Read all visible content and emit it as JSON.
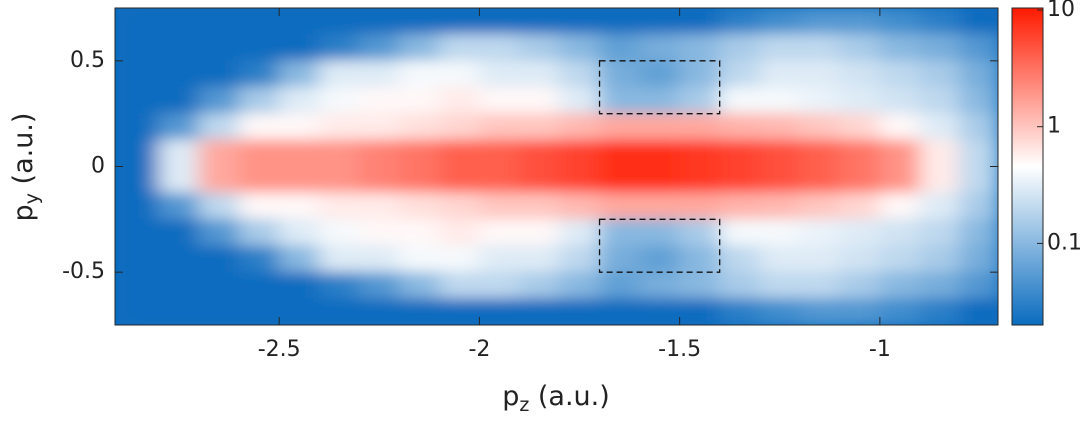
{
  "chart_data": {
    "type": "heatmap",
    "xlabel": [
      "p",
      "z",
      " (a.u.)"
    ],
    "ylabel": [
      "p",
      "y",
      " (a.u.)"
    ],
    "xlim": [
      -2.91,
      -0.705
    ],
    "ylim": [
      -0.75,
      0.75
    ],
    "xticks": [
      -2.5,
      -2,
      -1.5,
      -1
    ],
    "yticks": [
      -0.5,
      0,
      0.5
    ],
    "clim": [
      0.02,
      10.4
    ],
    "cticks": [
      0.1,
      1,
      10
    ],
    "log_color_scale": true,
    "colormap": [
      "#0a6cbf",
      "#ffffff",
      "#ff1a00"
    ],
    "x": [
      -2.85,
      -2.75,
      -2.65,
      -2.55,
      -2.45,
      -2.35,
      -2.25,
      -2.15,
      -2.05,
      -1.95,
      -1.85,
      -1.75,
      -1.65,
      -1.55,
      -1.45,
      -1.35,
      -1.25,
      -1.15,
      -1.05,
      -0.95,
      -0.85,
      -0.75
    ],
    "y": [
      0.6875,
      0.5625,
      0.4375,
      0.3125,
      0.1875,
      0.0625,
      -0.0625,
      -0.1875,
      -0.3125,
      -0.4375,
      -0.5625,
      -0.6875
    ],
    "z": [
      [
        0.02,
        0.02,
        0.02,
        0.02,
        0.02,
        0.02,
        0.02,
        0.02,
        0.02,
        0.02,
        0.02,
        0.02,
        0.02,
        0.02,
        0.02,
        0.03,
        0.04,
        0.05,
        0.05,
        0.04,
        0.03,
        0.02
      ],
      [
        0.02,
        0.02,
        0.02,
        0.02,
        0.02,
        0.03,
        0.05,
        0.1,
        0.2,
        0.2,
        0.15,
        0.1,
        0.06,
        0.08,
        0.1,
        0.15,
        0.2,
        0.2,
        0.15,
        0.1,
        0.08,
        0.05
      ],
      [
        0.02,
        0.02,
        0.02,
        0.03,
        0.1,
        0.3,
        0.3,
        0.4,
        0.4,
        0.3,
        0.3,
        0.2,
        0.08,
        0.06,
        0.1,
        0.2,
        0.3,
        0.3,
        0.25,
        0.2,
        0.15,
        0.08
      ],
      [
        0.02,
        0.02,
        0.05,
        0.15,
        0.3,
        0.4,
        0.5,
        0.5,
        0.6,
        0.5,
        0.5,
        0.3,
        0.1,
        0.1,
        0.15,
        0.4,
        0.4,
        0.35,
        0.3,
        0.25,
        0.2,
        0.1
      ],
      [
        0.02,
        0.05,
        0.2,
        0.5,
        0.5,
        0.6,
        0.6,
        0.7,
        0.8,
        1,
        1,
        1.2,
        1.5,
        1.5,
        1.5,
        1.3,
        1.2,
        1,
        0.8,
        0.5,
        0.3,
        0.15
      ],
      [
        0.02,
        0.3,
        1.5,
        2,
        2,
        2,
        2.5,
        3,
        4,
        4,
        5,
        6,
        8,
        8,
        7,
        6,
        5,
        4,
        3,
        2,
        0.6,
        0.2
      ],
      [
        0.02,
        0.3,
        1.5,
        2,
        2,
        2,
        2.5,
        3,
        4,
        4,
        5,
        6,
        8,
        8,
        7,
        6,
        5,
        4,
        3,
        2,
        0.6,
        0.2
      ],
      [
        0.02,
        0.05,
        0.2,
        0.5,
        0.5,
        0.6,
        0.6,
        0.7,
        0.8,
        1,
        1,
        1.2,
        1.5,
        1.5,
        1.5,
        1.3,
        1.2,
        1,
        0.8,
        0.5,
        0.3,
        0.15
      ],
      [
        0.02,
        0.02,
        0.05,
        0.15,
        0.3,
        0.4,
        0.5,
        0.5,
        0.6,
        0.5,
        0.5,
        0.3,
        0.1,
        0.1,
        0.15,
        0.4,
        0.4,
        0.35,
        0.3,
        0.25,
        0.2,
        0.1
      ],
      [
        0.02,
        0.02,
        0.02,
        0.03,
        0.1,
        0.3,
        0.3,
        0.4,
        0.4,
        0.3,
        0.3,
        0.2,
        0.08,
        0.06,
        0.1,
        0.2,
        0.3,
        0.3,
        0.25,
        0.2,
        0.15,
        0.08
      ],
      [
        0.02,
        0.02,
        0.02,
        0.02,
        0.02,
        0.03,
        0.05,
        0.1,
        0.2,
        0.2,
        0.15,
        0.1,
        0.06,
        0.08,
        0.1,
        0.15,
        0.2,
        0.2,
        0.15,
        0.1,
        0.08,
        0.05
      ],
      [
        0.02,
        0.02,
        0.02,
        0.02,
        0.02,
        0.02,
        0.02,
        0.02,
        0.02,
        0.02,
        0.02,
        0.02,
        0.02,
        0.02,
        0.02,
        0.03,
        0.04,
        0.05,
        0.05,
        0.04,
        0.03,
        0.02
      ]
    ],
    "annotations": [
      {
        "x": [
          -1.7,
          -1.4
        ],
        "y": [
          0.25,
          0.5
        ]
      },
      {
        "x": [
          -1.7,
          -1.4
        ],
        "y": [
          -0.5,
          -0.25
        ]
      }
    ]
  }
}
